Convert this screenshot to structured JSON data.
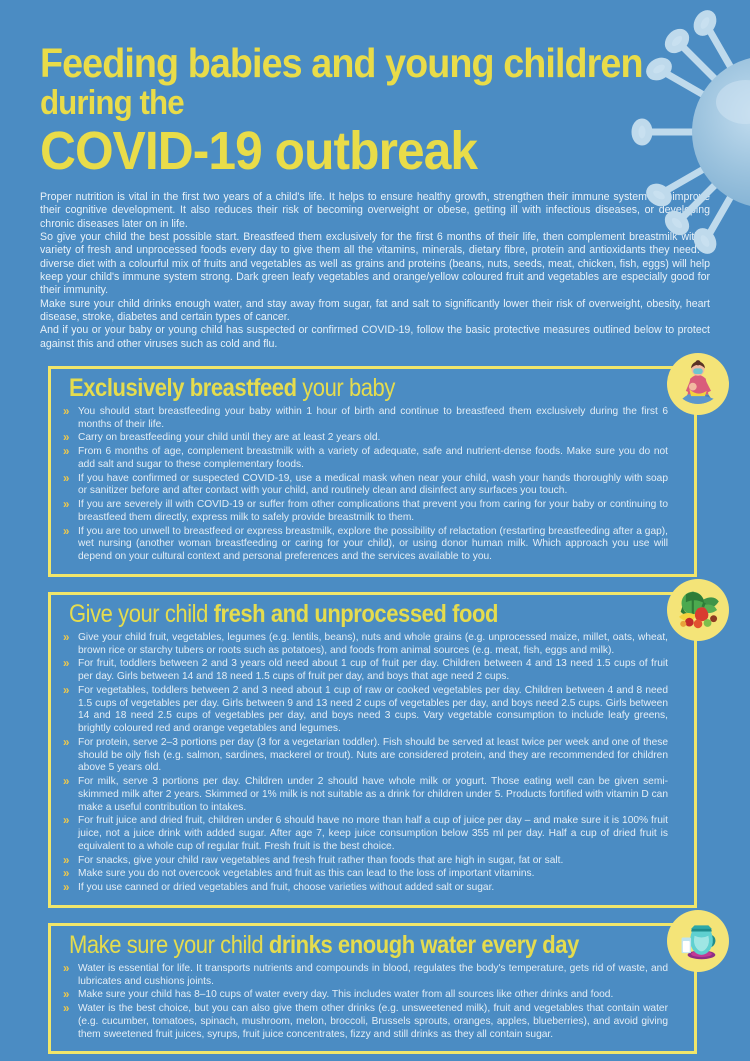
{
  "header": {
    "title_line1": "Feeding babies and young children",
    "title_line2": "during the",
    "title_line3": "COVID-19 outbreak"
  },
  "intro": [
    "Proper nutrition is vital in the first two years of a child's life. It helps to ensure healthy growth, strengthen their immune system and improve their cognitive development. It also reduces their risk of becoming overweight or obese, getting ill with infectious diseases, or developing chronic diseases later on in life.",
    "So give your child the best possible start. Breastfeed them exclusively for the first 6 months of their life, then complement breastmilk with a variety of fresh and unprocessed foods every day to give them all the vitamins, minerals, dietary fibre, protein and antioxidants they need. A diverse diet with a colourful mix of fruits and vegetables as well as grains and proteins (beans, nuts, seeds, meat, chicken, fish, eggs) will help keep your child's immune system strong. Dark green leafy vegetables and orange/yellow coloured fruit and vegetables are especially good for their immunity.",
    "Make sure your child drinks enough water, and stay away from sugar, fat and salt to significantly lower their risk of overweight, obesity, heart disease, stroke, diabetes and certain types of cancer.",
    "And if you or your baby or young child has suspected or confirmed COVID-19, follow the basic protective measures outlined below to protect against this and other viruses such as cold and flu."
  ],
  "bullet_marker": "»",
  "sections": [
    {
      "icon": "breastfeeding-mother-icon",
      "heading": [
        {
          "text": "Exclusively breastfeed",
          "bold": true
        },
        {
          "text": " your baby",
          "bold": false
        }
      ],
      "bullets": [
        "You should start breastfeeding your baby within 1 hour of birth and continue to breastfeed them exclusively during the first 6 months of their life.",
        "Carry on breastfeeding your child until they are at least 2 years old.",
        "From 6 months of age, complement breastmilk with a variety of adequate, safe and nutrient-dense foods. Make sure you do not add salt and sugar to these complementary foods.",
        "If you have confirmed or suspected COVID-19, use a medical mask when near your child, wash your hands thoroughly with soap or sanitizer before and after contact with your child, and routinely clean and disinfect any surfaces you touch.",
        "If you are severely ill with COVID-19 or suffer from other complications that prevent you from caring for your baby or continuing to breastfeed them directly, express milk to safely provide breastmilk to them.",
        "If you are too unwell to breastfeed or express breastmilk, explore the possibility of relactation (restarting breastfeeding after a gap), wet nursing (another woman breastfeeding or caring for your child), or using donor human milk. Which approach you use will depend on your cultural context and personal preferences and the services available to you."
      ]
    },
    {
      "icon": "fruits-vegetables-icon",
      "heading": [
        {
          "text": "Give your child ",
          "bold": false
        },
        {
          "text": "fresh and unprocessed food",
          "bold": true
        }
      ],
      "bullets": [
        "Give your child fruit, vegetables, legumes (e.g. lentils, beans), nuts and whole grains (e.g. unprocessed maize, millet, oats, wheat, brown rice or starchy tubers or roots such as potatoes), and foods from animal sources (e.g. meat, fish, eggs and milk).",
        "For fruit, toddlers between 2 and 3 years old need about 1 cup of fruit per day. Children between 4 and 13 need 1.5 cups of fruit per day. Girls between 14 and 18 need 1.5 cups of fruit per day, and boys that age need 2 cups.",
        "For vegetables, toddlers between 2 and 3 need about 1 cup of raw or cooked vegetables per day. Children between 4 and 8 need 1.5 cups of vegetables per day. Girls between 9 and 13 need 2 cups of vegetables per day, and boys need 2.5 cups. Girls between 14 and 18 need 2.5 cups of vegetables per day, and boys need 3 cups. Vary vegetable consumption to include leafy greens, brightly coloured red and orange vegetables and legumes.",
        "For protein, serve 2–3 portions per day (3 for a vegetarian toddler). Fish should be served at least twice per week and one of these should be oily fish (e.g. salmon, sardines, mackerel or trout). Nuts are considered protein, and they are recommended for children above 5 years old.",
        "For milk, serve 3 portions per day. Children under 2 should have whole milk or yogurt. Those eating well can be given semi-skimmed milk after 2 years. Skimmed or 1% milk is not suitable as a drink for children under 5. Products fortified with vitamin D can make a useful contribution to intakes.",
        "For fruit juice and dried fruit, children under 6 should have no more than half a cup of juice per day – and make sure it is 100% fruit juice, not a juice drink with added sugar. After age 7, keep juice consumption below 355 ml per day. Half a cup of dried fruit is equivalent to a whole cup of regular fruit. Fresh fruit is the best choice.",
        "For snacks, give your child raw vegetables and fresh fruit rather than foods that are high in sugar, fat or salt.",
        "Make sure you do not overcook vegetables and fruit as this can lead to the loss of important vitamins.",
        "If you use canned or dried vegetables and fruit, choose varieties without added salt or sugar."
      ]
    },
    {
      "icon": "water-pitcher-icon",
      "heading": [
        {
          "text": "Make sure your child ",
          "bold": false
        },
        {
          "text": "drinks enough water every day",
          "bold": true
        }
      ],
      "bullets": [
        "Water is essential for life. It transports nutrients and compounds in blood, regulates the body's temperature, gets rid of waste, and lubricates and cushions joints.",
        "Make sure your child has 8–10 cups of water every day. This includes water from all sources like other drinks and food.",
        "Water is the best choice, but you can also give them other drinks (e.g. unsweetened milk), fruit and vegetables that contain water (e.g. cucumber, tomatoes, spinach, mushroom, melon, broccoli, Brussels sprouts, oranges, apples, blueberries), and avoid giving them sweetened fruit juices, syrups, fruit juice concentrates, fizzy and still drinks as they all contain sugar."
      ]
    }
  ],
  "colors": {
    "background_blue": "#4B8CC3",
    "title_yellow": "#E9DC49",
    "border_yellow": "#F1E66A",
    "circle_yellow": "#F4E478",
    "chevron_gold": "#EFC94C",
    "body_text": "#E8F1F8",
    "virus_blue": "#9CC3DE"
  }
}
